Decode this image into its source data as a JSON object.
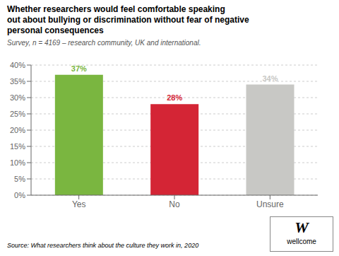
{
  "chart_data": {
    "type": "bar",
    "title": "Whether researchers would feel comfortable speaking\nout about bullying or discrimination without fear of negative\npersonal consequences",
    "subtitle": "Survey, n = 4169 – research community, UK and international.",
    "annotations": [
      "Source: What researchers think about the culture they work in, 2020",
      "W",
      "wellcome"
    ],
    "categories": [
      "Yes",
      "No",
      "Unsure"
    ],
    "values": [
      37,
      28,
      34
    ],
    "value_labels": [
      "37%",
      "28%",
      "34%"
    ],
    "data_labels": true,
    "colors": [
      "#7ab640",
      "#d42535",
      "#c8c8c5"
    ],
    "ylim": [
      0,
      40
    ],
    "yticks": [
      {
        "value": 0,
        "label": "0%"
      },
      {
        "value": 5,
        "label": "5%"
      },
      {
        "value": 10,
        "label": "10%"
      },
      {
        "value": 15,
        "label": "15%"
      },
      {
        "value": 20,
        "label": "20%"
      },
      {
        "value": 25,
        "label": "25%"
      },
      {
        "value": 30,
        "label": "30%"
      },
      {
        "value": 35,
        "label": "35%"
      },
      {
        "value": 40,
        "label": "40%"
      }
    ],
    "grid": true
  }
}
